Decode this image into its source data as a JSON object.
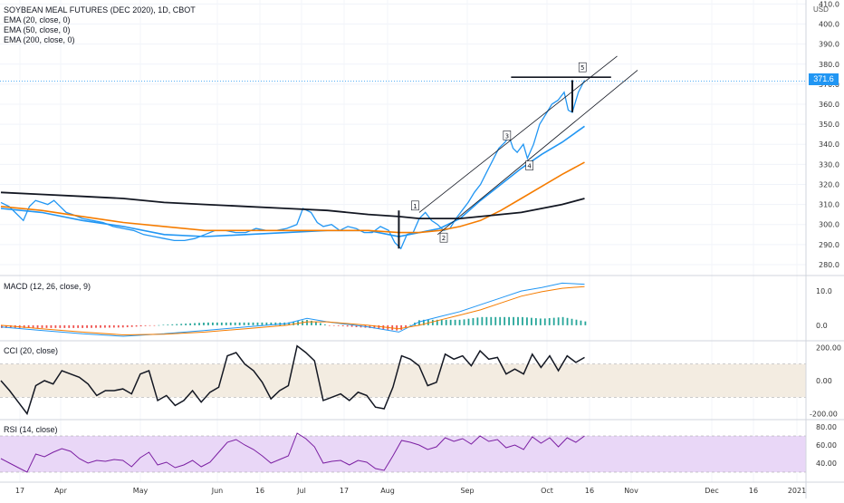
{
  "instrument_title": "SOYBEAN MEAL FUTURES (DEC 2020), 1D, CBOT",
  "indicators": [
    "EMA (20, close, 0)",
    "EMA (50, close, 0)",
    "EMA (200, close, 0)"
  ],
  "unit": "USD",
  "last_price_label": "371.6",
  "wave_labels": [
    "1",
    "2",
    "3",
    "4",
    "5"
  ],
  "colors": {
    "price": "#2196f3",
    "ema20": "#2196f3",
    "ema50": "#f57c00",
    "ema200": "#131722",
    "macd_signal": "#f57c00",
    "rsi": "#7b1fa2",
    "rsi_band": "#e9d7f7",
    "cci_band": "#f3ece1"
  },
  "chart_data": [
    {
      "type": "line",
      "title": "SOYBEAN MEAL FUTURES (DEC 2020), 1D, CBOT",
      "x_ticks": [
        "17",
        "Apr",
        "May",
        "Jun",
        "16",
        "Jul",
        "17",
        "Aug",
        "Sep",
        "Oct",
        "16",
        "Nov",
        "Dec",
        "16",
        "2021"
      ],
      "y_ticks": [
        "280.0",
        "290.0",
        "300.0",
        "310.0",
        "320.0",
        "330.0",
        "340.0",
        "350.0",
        "360.0",
        "370.0",
        "380.0",
        "390.0",
        "400.0",
        "410.0"
      ],
      "ylim": [
        275,
        412
      ],
      "x_range_days": [
        0,
        288
      ],
      "series": [
        {
          "name": "Price",
          "points": [
            [
              0,
              311
            ],
            [
              4,
              309
            ],
            [
              8,
              305
            ],
            [
              11,
              302
            ],
            [
              14,
              309
            ],
            [
              17,
              312
            ],
            [
              20,
              311
            ],
            [
              23,
              310
            ],
            [
              26,
              312
            ],
            [
              29,
              309
            ],
            [
              32,
              306
            ],
            [
              35,
              305
            ],
            [
              40,
              303
            ],
            [
              45,
              302
            ],
            [
              50,
              301
            ],
            [
              55,
              299
            ],
            [
              60,
              298
            ],
            [
              65,
              297
            ],
            [
              70,
              295
            ],
            [
              75,
              294
            ],
            [
              80,
              293
            ],
            [
              85,
              292
            ],
            [
              90,
              292
            ],
            [
              95,
              293
            ],
            [
              100,
              295
            ],
            [
              105,
              297
            ],
            [
              110,
              297
            ],
            [
              115,
              296
            ],
            [
              120,
              296
            ],
            [
              125,
              298
            ],
            [
              130,
              297
            ],
            [
              135,
              297
            ],
            [
              140,
              298
            ],
            [
              145,
              300
            ],
            [
              148,
              308
            ],
            [
              152,
              306
            ],
            [
              155,
              301
            ],
            [
              158,
              299
            ],
            [
              162,
              300
            ],
            [
              166,
              297
            ],
            [
              170,
              299
            ],
            [
              174,
              298
            ],
            [
              178,
              296
            ],
            [
              182,
              296
            ],
            [
              186,
              299
            ],
            [
              190,
              297
            ],
            [
              193,
              291
            ],
            [
              196,
              288
            ],
            [
              199,
              295
            ],
            [
              202,
              296
            ],
            [
              205,
              303
            ],
            [
              208,
              306
            ],
            [
              211,
              302
            ],
            [
              214,
              300
            ],
            [
              217,
              297
            ],
            [
              220,
              298
            ],
            [
              223,
              303
            ],
            [
              226,
              307
            ],
            [
              229,
              311
            ],
            [
              232,
              316
            ],
            [
              235,
              320
            ],
            [
              238,
              326
            ],
            [
              241,
              332
            ],
            [
              244,
              338
            ],
            [
              247,
              341
            ],
            [
              249,
              344
            ],
            [
              251,
              338
            ],
            [
              253,
              336
            ],
            [
              256,
              340
            ],
            [
              258,
              333
            ],
            [
              261,
              340
            ],
            [
              264,
              350
            ],
            [
              267,
              355
            ],
            [
              270,
              360
            ],
            [
              273,
              362
            ],
            [
              276,
              366
            ],
            [
              278,
              357
            ],
            [
              280,
              356
            ],
            [
              283,
              366
            ],
            [
              286,
              372
            ]
          ]
        },
        {
          "name": "EMA (20, close, 0)",
          "points": [
            [
              0,
              308
            ],
            [
              20,
              306
            ],
            [
              40,
              302
            ],
            [
              60,
              299
            ],
            [
              80,
              295
            ],
            [
              100,
              294
            ],
            [
              120,
              295
            ],
            [
              140,
              296
            ],
            [
              160,
              297
            ],
            [
              180,
              297
            ],
            [
              195,
              294
            ],
            [
              205,
              296
            ],
            [
              215,
              298
            ],
            [
              225,
              303
            ],
            [
              235,
              312
            ],
            [
              245,
              320
            ],
            [
              255,
              328
            ],
            [
              265,
              335
            ],
            [
              275,
              341
            ],
            [
              286,
              349
            ]
          ]
        },
        {
          "name": "EMA (50, close, 0)",
          "points": [
            [
              0,
              309
            ],
            [
              20,
              307
            ],
            [
              40,
              304
            ],
            [
              60,
              301
            ],
            [
              80,
              299
            ],
            [
              100,
              297
            ],
            [
              120,
              297
            ],
            [
              140,
              297
            ],
            [
              160,
              297
            ],
            [
              180,
              297
            ],
            [
              195,
              296
            ],
            [
              205,
              296
            ],
            [
              215,
              297
            ],
            [
              225,
              299
            ],
            [
              235,
              302
            ],
            [
              245,
              307
            ],
            [
              255,
              313
            ],
            [
              265,
              319
            ],
            [
              275,
              325
            ],
            [
              286,
              331
            ]
          ]
        },
        {
          "name": "EMA (200, close, 0)",
          "points": [
            [
              0,
              316
            ],
            [
              20,
              315
            ],
            [
              40,
              314
            ],
            [
              60,
              313
            ],
            [
              80,
              311
            ],
            [
              100,
              310
            ],
            [
              120,
              309
            ],
            [
              140,
              308
            ],
            [
              160,
              307
            ],
            [
              180,
              305
            ],
            [
              195,
              304
            ],
            [
              205,
              303
            ],
            [
              215,
              303
            ],
            [
              225,
              303
            ],
            [
              235,
              304
            ],
            [
              245,
              305
            ],
            [
              255,
              306
            ],
            [
              265,
              308
            ],
            [
              275,
              310
            ],
            [
              286,
              313
            ]
          ]
        }
      ],
      "annotations": [
        {
          "type": "channel_upper",
          "from": [
            205,
            306
          ],
          "to": [
            302,
            384
          ]
        },
        {
          "type": "channel_lower",
          "from": [
            214,
            295
          ],
          "to": [
            312,
            377
          ]
        },
        {
          "type": "resistance",
          "from": [
            250,
            373.5
          ],
          "to": [
            299,
            373.5
          ]
        },
        {
          "type": "wave_stick",
          "at": 195,
          "from": 288,
          "to": 307
        },
        {
          "type": "wave_stick",
          "at": 280,
          "from": 356,
          "to": 372
        }
      ]
    },
    {
      "type": "line",
      "title": "MACD (12, 26, close, 9)",
      "y_ticks": [
        "0.0",
        "10.0"
      ],
      "ylim": [
        -4,
        14
      ],
      "series": [
        {
          "name": "MACD",
          "points": [
            [
              0,
              -0.5
            ],
            [
              20,
              -1.5
            ],
            [
              40,
              -2.5
            ],
            [
              60,
              -3.2
            ],
            [
              80,
              -2.5
            ],
            [
              100,
              -1.5
            ],
            [
              120,
              -0.5
            ],
            [
              140,
              0.5
            ],
            [
              150,
              2
            ],
            [
              160,
              1
            ],
            [
              180,
              -0.5
            ],
            [
              195,
              -2
            ],
            [
              205,
              1
            ],
            [
              215,
              2.5
            ],
            [
              225,
              4
            ],
            [
              235,
              6
            ],
            [
              245,
              8
            ],
            [
              255,
              10
            ],
            [
              265,
              11
            ],
            [
              275,
              12.3
            ],
            [
              286,
              12
            ]
          ]
        },
        {
          "name": "Signal",
          "points": [
            [
              0,
              0
            ],
            [
              20,
              -1
            ],
            [
              40,
              -2
            ],
            [
              60,
              -2.8
            ],
            [
              80,
              -2.6
            ],
            [
              100,
              -2
            ],
            [
              120,
              -1
            ],
            [
              140,
              0
            ],
            [
              150,
              1
            ],
            [
              160,
              1
            ],
            [
              180,
              0
            ],
            [
              195,
              -1
            ],
            [
              205,
              0
            ],
            [
              215,
              1.5
            ],
            [
              225,
              3
            ],
            [
              235,
              4.5
            ],
            [
              245,
              6.5
            ],
            [
              255,
              8.5
            ],
            [
              265,
              9.8
            ],
            [
              275,
              10.8
            ],
            [
              286,
              11.3
            ]
          ]
        }
      ]
    },
    {
      "type": "line",
      "title": "CCI (20, close)",
      "y_ticks": [
        "-200.00",
        "0.00",
        "200.00"
      ],
      "ylim": [
        -230,
        230
      ],
      "bands": [
        -100,
        100
      ],
      "series": [
        {
          "name": "CCI",
          "values": [
            0,
            -60,
            -130,
            -200,
            -30,
            0,
            -20,
            60,
            40,
            20,
            -20,
            -90,
            -60,
            -60,
            -50,
            -80,
            40,
            60,
            -120,
            -90,
            -150,
            -120,
            -60,
            -130,
            -70,
            -40,
            150,
            170,
            100,
            60,
            -10,
            -110,
            -60,
            -30,
            210,
            170,
            120,
            -120,
            -100,
            -80,
            -120,
            -70,
            -90,
            -160,
            -170,
            -40,
            150,
            130,
            90,
            -30,
            -10,
            160,
            130,
            150,
            90,
            180,
            130,
            140,
            40,
            70,
            40,
            160,
            80,
            150,
            60,
            150,
            110,
            140
          ]
        }
      ]
    },
    {
      "type": "line",
      "title": "RSI (14, close)",
      "y_ticks": [
        "40.00",
        "60.00",
        "80.00"
      ],
      "ylim": [
        20,
        86
      ],
      "bands": [
        30,
        70
      ],
      "series": [
        {
          "name": "RSI",
          "values": [
            45,
            40,
            35,
            30,
            50,
            47,
            52,
            56,
            53,
            45,
            40,
            43,
            42,
            44,
            43,
            36,
            46,
            52,
            38,
            41,
            35,
            38,
            43,
            36,
            41,
            52,
            63,
            66,
            60,
            55,
            48,
            40,
            44,
            48,
            73,
            67,
            58,
            40,
            42,
            43,
            38,
            43,
            41,
            34,
            32,
            48,
            65,
            63,
            60,
            55,
            58,
            68,
            64,
            67,
            61,
            70,
            64,
            66,
            57,
            60,
            55,
            69,
            62,
            68,
            58,
            68,
            63,
            70
          ]
        }
      ]
    }
  ]
}
